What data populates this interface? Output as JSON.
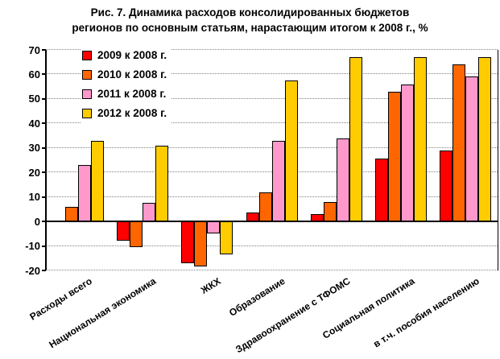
{
  "title": {
    "line1": "Рис. 7. Динамика расходов консолидированных бюджетов",
    "line2": "регионов по основным статьям, нарастающим итогом к 2008 г., %"
  },
  "chart_data": {
    "type": "bar",
    "title": "Рис. 7. Динамика расходов консолидированных бюджетов регионов по основным статьям, нарастающим итогом к 2008 г., %",
    "categories": [
      "Расходы всего",
      "Национальная экономика",
      "ЖКХ",
      "Образование",
      "Здравоохранение с ТФОМС",
      "Социальная политика",
      "в т.ч. пособия населению"
    ],
    "series": [
      {
        "name": "2009 к 2008 г.",
        "color": "#FF0000",
        "values": [
          0,
          -8,
          -17,
          3.5,
          3,
          25.5,
          29
        ]
      },
      {
        "name": "2010 к 2008 г.",
        "color": "#FF6600",
        "values": [
          6,
          -10.5,
          -18.5,
          12,
          8,
          53,
          64
        ]
      },
      {
        "name": "2011 к 2008 г.",
        "color": "#FF99CC",
        "values": [
          23,
          7.5,
          -5,
          33,
          34,
          56,
          59
        ]
      },
      {
        "name": "2012 к 2008 г.",
        "color": "#FFCC00",
        "values": [
          33,
          31,
          -13.5,
          57.5,
          67,
          67,
          67
        ]
      }
    ],
    "ylim": [
      -20,
      70
    ],
    "ytick_step": 10,
    "legend_position": "top-left-inside",
    "grid": "horizontal-dotted"
  },
  "colors": {
    "background": "#FFFFFF",
    "axis": "#000000",
    "grid": "#828282",
    "bar_border": "#000000"
  }
}
